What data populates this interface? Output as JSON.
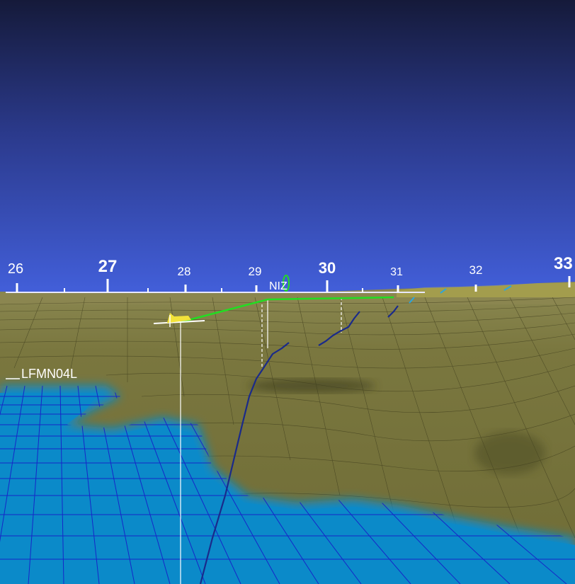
{
  "heading_scale": {
    "ticks": [
      {
        "label": "26",
        "major": false
      },
      {
        "label": "27",
        "major": true
      },
      {
        "label": "28",
        "major": false
      },
      {
        "label": "29",
        "major": false
      },
      {
        "label": "30",
        "major": true
      },
      {
        "label": "31",
        "major": false
      },
      {
        "label": "32",
        "major": false
      },
      {
        "label": "33",
        "major": true
      }
    ]
  },
  "waypoint": {
    "label": "NIZ"
  },
  "airport": {
    "label": "LFMN04L"
  },
  "colors": {
    "sky_top": "#151a3a",
    "sky_bottom": "#3e5ad8",
    "terrain": "#77743c",
    "sea": "#0b8ac9",
    "grid_sea": "#1626c8",
    "route": "#22dd22",
    "track": "#1a2a8a",
    "aircraft": "#f2e23a"
  },
  "icons": {
    "aircraft": "aircraft-icon",
    "waypoint": "waypoint-marker-icon"
  }
}
